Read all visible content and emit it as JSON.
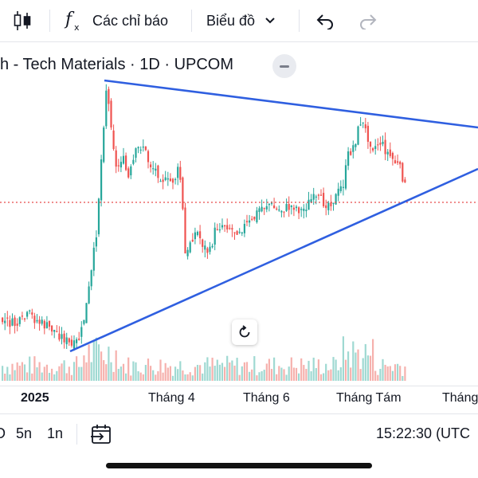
{
  "toolbar": {
    "indicators_label": "Các chỉ báo",
    "chart_type_label": "Biểu đồ",
    "icons": [
      "candles-icon",
      "function-icon",
      "chevron-down-icon",
      "undo-icon",
      "redo-icon"
    ]
  },
  "legend": {
    "title": "h - Tech Materials · 1D · UPCOM"
  },
  "chart_data": {
    "type": "candlestick",
    "symbol_title": "h - Tech Materials · 1D · UPCOM",
    "interval": "1D",
    "exchange": "UPCOM",
    "x_tick_labels": [
      "2025",
      "Tháng 4",
      "Tháng 6",
      "Tháng Tám",
      "Tháng"
    ],
    "colors": {
      "up": "#26a69a",
      "down": "#ef5350",
      "up_volume": "#9fd9d2",
      "down_volume": "#f6b1ad",
      "trendline": "#2f5fe0",
      "price_line": "#e84a4a"
    },
    "annotations": [
      "symmetrical triangle (two trendlines)",
      "dotted last-price line"
    ]
  },
  "time_axis": {
    "labels": [
      "2025",
      "Tháng 4",
      "Tháng 6",
      "Tháng Tám",
      "Tháng"
    ]
  },
  "bottom_bar": {
    "ranges": [
      "D",
      "5n",
      "1n"
    ],
    "clock": "15:22:30 (UTC"
  }
}
